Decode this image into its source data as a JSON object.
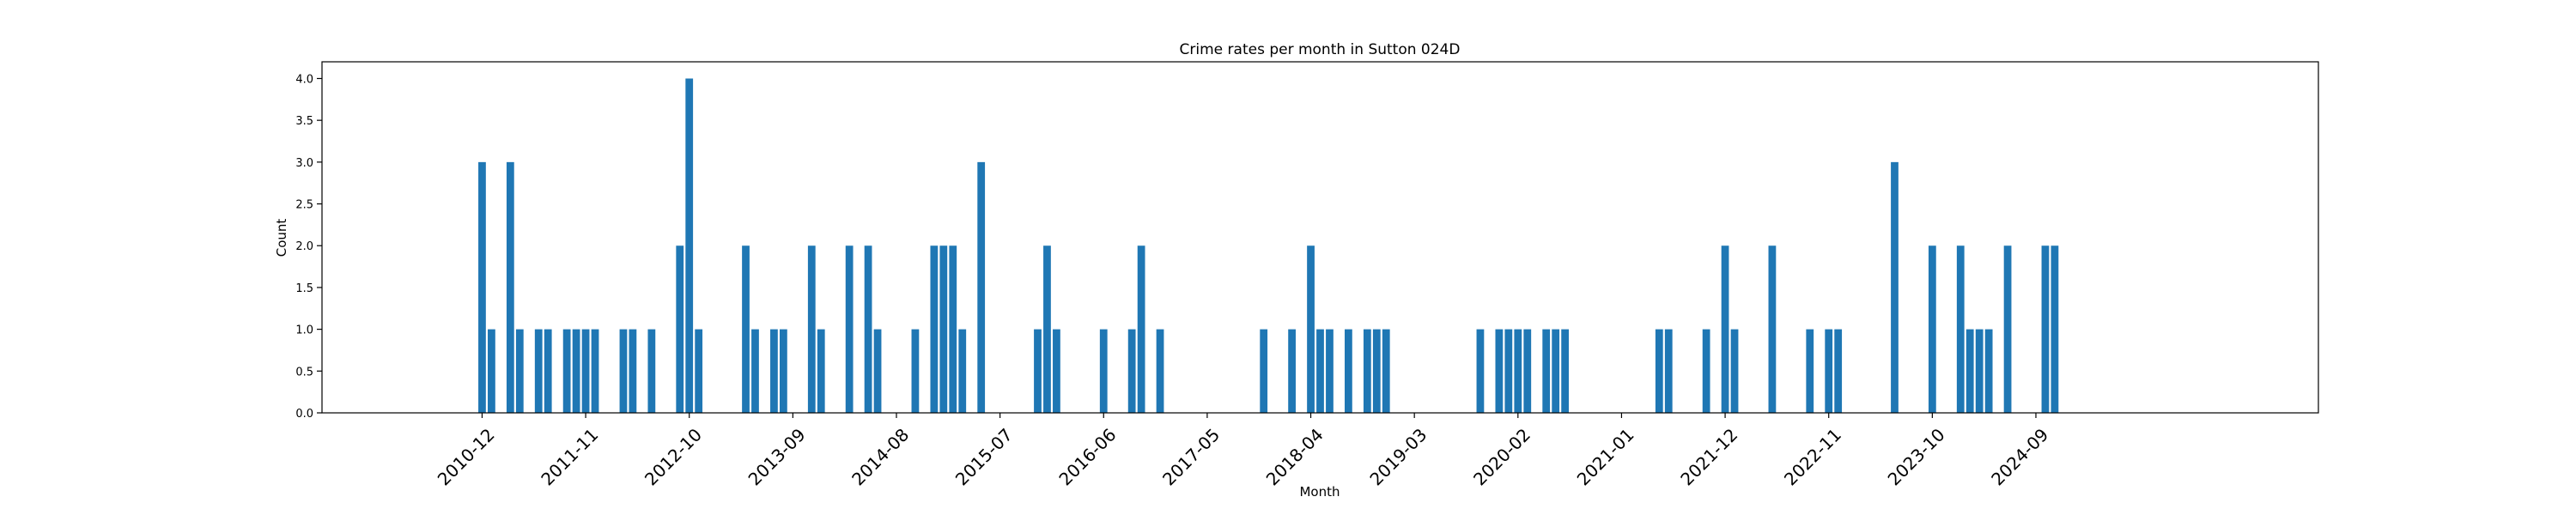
{
  "chart_data": {
    "type": "bar",
    "title": "Crime rates per month in Sutton 024D",
    "xlabel": "Month",
    "ylabel": "Count",
    "ylim": [
      0,
      4.2
    ],
    "xlim": [
      "2009-07",
      "2027-03"
    ],
    "yticks": [
      "0.0",
      "0.5",
      "1.0",
      "1.5",
      "2.0",
      "2.5",
      "3.0",
      "3.5",
      "4.0"
    ],
    "xticks": [
      "2010-12",
      "2011-11",
      "2012-10",
      "2013-09",
      "2014-08",
      "2015-07",
      "2016-06",
      "2017-05",
      "2018-04",
      "2019-03",
      "2020-02",
      "2021-01",
      "2021-12",
      "2022-11",
      "2023-10",
      "2024-09"
    ],
    "bar_color": "#1f77b4",
    "grid": false,
    "legend": "none",
    "x": [
      "2010-12",
      "2011-01",
      "2011-03",
      "2011-04",
      "2011-06",
      "2011-07",
      "2011-09",
      "2011-10",
      "2011-11",
      "2011-12",
      "2012-03",
      "2012-04",
      "2012-06",
      "2012-09",
      "2012-10",
      "2012-11",
      "2013-04",
      "2013-05",
      "2013-07",
      "2013-08",
      "2013-11",
      "2013-12",
      "2014-03",
      "2014-05",
      "2014-06",
      "2014-10",
      "2014-12",
      "2015-01",
      "2015-02",
      "2015-03",
      "2015-05",
      "2015-11",
      "2015-12",
      "2016-01",
      "2016-06",
      "2016-09",
      "2016-10",
      "2016-12",
      "2017-11",
      "2018-02",
      "2018-04",
      "2018-05",
      "2018-06",
      "2018-08",
      "2018-10",
      "2018-11",
      "2018-12",
      "2019-10",
      "2019-12",
      "2020-01",
      "2020-02",
      "2020-03",
      "2020-05",
      "2020-06",
      "2020-07",
      "2021-05",
      "2021-06",
      "2021-10",
      "2021-12",
      "2022-01",
      "2022-05",
      "2022-09",
      "2022-11",
      "2022-12",
      "2023-06",
      "2023-10",
      "2024-01",
      "2024-02",
      "2024-03",
      "2024-04",
      "2024-06",
      "2024-10",
      "2024-11"
    ],
    "values": [
      3,
      1,
      3,
      1,
      1,
      1,
      1,
      1,
      1,
      1,
      1,
      1,
      1,
      2,
      4,
      1,
      2,
      1,
      1,
      1,
      2,
      1,
      2,
      2,
      1,
      1,
      2,
      2,
      2,
      1,
      3,
      1,
      2,
      1,
      1,
      1,
      2,
      1,
      1,
      1,
      2,
      1,
      1,
      1,
      1,
      1,
      1,
      1,
      1,
      1,
      1,
      1,
      1,
      1,
      1,
      1,
      1,
      1,
      2,
      1,
      2,
      1,
      1,
      1,
      3,
      2,
      2,
      1,
      1,
      1,
      2,
      2,
      2
    ]
  }
}
